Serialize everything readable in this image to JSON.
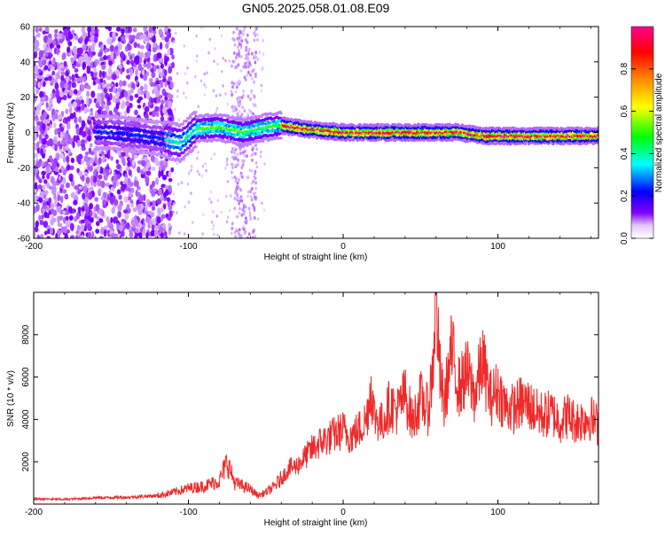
{
  "title": "GN05.2025.058.01.08.E09",
  "chart_data": [
    {
      "type": "heatmap",
      "title": "",
      "xlabel": "Height of straight line (km)",
      "ylabel": "Frequency (Hz)",
      "xlim": [
        -200,
        165
      ],
      "ylim": [
        -60,
        60
      ],
      "xticks": [
        "-200",
        "-100",
        "0",
        "100"
      ],
      "xtick_values": [
        -200,
        -100,
        0,
        100
      ],
      "yticks": [
        "60",
        "40",
        "20",
        "0",
        "-20",
        "-40",
        "-60"
      ],
      "ytick_values": [
        60,
        40,
        20,
        0,
        -20,
        -40,
        -60
      ],
      "colorbar": {
        "label": "Normalized spectral amplitude",
        "range": [
          0,
          1
        ],
        "ticks": [
          "0.0",
          "0.2",
          "0.4",
          "0.6",
          "0.8"
        ],
        "tick_values": [
          0.0,
          0.2,
          0.4,
          0.6,
          0.8
        ],
        "colors": [
          "#ffffff",
          "#8000ff",
          "#0000ff",
          "#00ffff",
          "#00ff00",
          "#ffff00",
          "#ff8000",
          "#ff0000",
          "#ff00ff"
        ]
      },
      "ridge": {
        "x": [
          -150,
          -130,
          -115,
          -105,
          -95,
          -80,
          -65,
          -50,
          -40,
          -25,
          0,
          25,
          50,
          75,
          90,
          110,
          130,
          165
        ],
        "freq": [
          0,
          -2,
          -4,
          -6,
          2,
          3,
          0,
          3,
          4,
          2,
          0,
          0,
          0,
          0,
          -2,
          -2,
          -2,
          -2
        ]
      }
    },
    {
      "type": "line",
      "title": "",
      "xlabel": "Height of straight line (km)",
      "ylabel": "SNR (10 * v/v)",
      "xlim": [
        -200,
        165
      ],
      "ylim": [
        0,
        10000
      ],
      "xticks": [
        "-200",
        "-100",
        "0",
        "100"
      ],
      "xtick_values": [
        -200,
        -100,
        0,
        100
      ],
      "yticks": [
        "2000",
        "4000",
        "6000",
        "8000"
      ],
      "ytick_values": [
        2000,
        4000,
        6000,
        8000
      ],
      "series": [
        {
          "color": "#ee2a2a",
          "x": [
            -200,
            -180,
            -160,
            -140,
            -120,
            -110,
            -100,
            -90,
            -80,
            -75,
            -70,
            -60,
            -55,
            -50,
            -45,
            -40,
            -35,
            -30,
            -25,
            -20,
            -15,
            -10,
            -5,
            0,
            5,
            10,
            15,
            18,
            20,
            25,
            30,
            35,
            40,
            45,
            50,
            55,
            58,
            60,
            62,
            65,
            70,
            75,
            80,
            85,
            90,
            95,
            100,
            105,
            110,
            115,
            120,
            125,
            130,
            135,
            140,
            145,
            150,
            155,
            160,
            165
          ],
          "y": [
            250,
            220,
            300,
            320,
            400,
            550,
            750,
            850,
            1100,
            2000,
            1000,
            700,
            400,
            550,
            800,
            1200,
            1700,
            1800,
            2200,
            2600,
            2900,
            3100,
            3300,
            3500,
            3200,
            3500,
            4000,
            5600,
            4200,
            3800,
            4700,
            4400,
            5200,
            3900,
            5000,
            4400,
            6500,
            10000,
            6500,
            4600,
            7200,
            5500,
            6200,
            5100,
            6800,
            5000,
            5400,
            4600,
            4500,
            4800,
            4700,
            4300,
            4200,
            4300,
            3900,
            4200,
            3900,
            4000,
            4100,
            3700
          ]
        }
      ]
    }
  ]
}
